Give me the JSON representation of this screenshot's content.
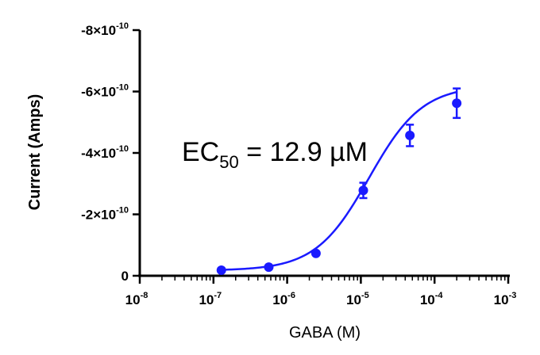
{
  "chart_data": {
    "type": "scatter",
    "xlabel": "GABA (M)",
    "ylabel": "Current (Amps)",
    "x_scale": "log",
    "xlim": [
      1e-08,
      0.001
    ],
    "ylim": [
      0,
      -8e-10
    ],
    "y_axis_inverted": true,
    "x_ticks": [
      {
        "base": "10",
        "exp": "-8"
      },
      {
        "base": "10",
        "exp": "-7"
      },
      {
        "base": "10",
        "exp": "-6"
      },
      {
        "base": "10",
        "exp": "-5"
      },
      {
        "base": "10",
        "exp": "-4"
      },
      {
        "base": "10",
        "exp": "-3"
      }
    ],
    "y_ticks": [
      {
        "value": 0,
        "label": "0"
      },
      {
        "value": -2e-10,
        "label": "-2×10",
        "exp": "-10"
      },
      {
        "value": -4e-10,
        "label": "-4×10",
        "exp": "-10"
      },
      {
        "value": -6e-10,
        "label": "-6×10",
        "exp": "-10"
      },
      {
        "value": -8e-10,
        "label": "-8×10",
        "exp": "-10"
      }
    ],
    "series": [
      {
        "color": "#1a1aff",
        "points": [
          {
            "x": 1.28e-07,
            "y": -1.8e-11,
            "err": 3e-12
          },
          {
            "x": 5.63e-07,
            "y": -2.8e-11,
            "err": 3e-12
          },
          {
            "x": 2.46e-06,
            "y": -7.3e-11,
            "err": 5e-12
          },
          {
            "x": 1.08e-05,
            "y": -2.78e-10,
            "err": 2.5e-11
          },
          {
            "x": 4.63e-05,
            "y": -4.57e-10,
            "err": 3.5e-11
          },
          {
            "x": 0.0002,
            "y": -5.62e-10,
            "err": 4.8e-11
          }
        ],
        "fit": {
          "model": "4PL",
          "bottom": -1.7e-11,
          "top": -6.2e-10,
          "ec50": 1.29e-05,
          "hill": 1.2,
          "x_range": [
            1.28e-07,
            0.0002
          ]
        }
      }
    ],
    "annotation": {
      "prefix": "EC",
      "subscript": "50",
      "suffix": " = 12.9 µM"
    }
  }
}
